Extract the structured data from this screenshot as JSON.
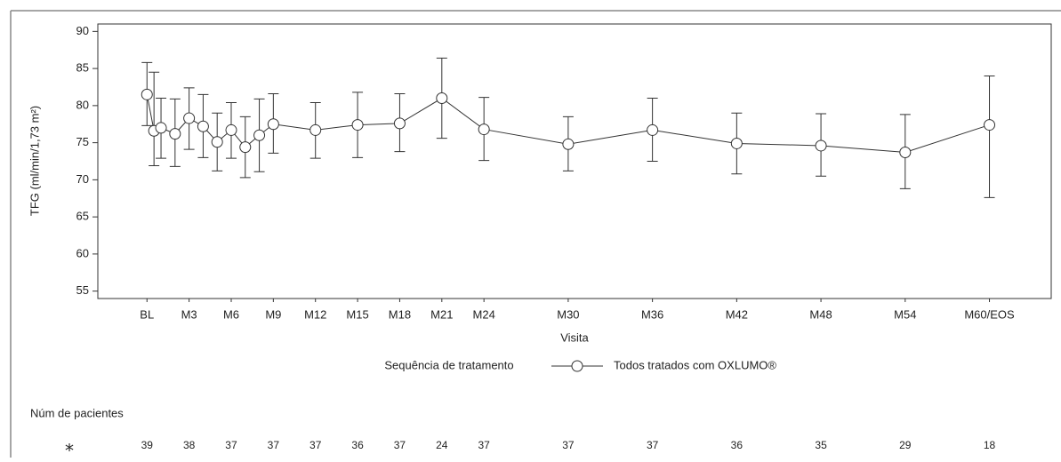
{
  "chart_data": {
    "type": "line",
    "x": [
      0,
      0.5,
      1,
      2,
      3,
      4,
      5,
      6,
      7,
      8,
      9,
      12,
      15,
      18,
      21,
      24,
      30,
      36,
      42,
      48,
      54,
      60
    ],
    "series": [
      {
        "name": "Todos tratados com OXLUMO®",
        "color": "#333333",
        "values": [
          81.5,
          76.6,
          77.0,
          76.2,
          78.3,
          77.2,
          75.1,
          76.7,
          74.4,
          76.0,
          77.5,
          76.7,
          77.4,
          77.6,
          81.0,
          76.8,
          74.8,
          76.7,
          74.9,
          74.6,
          73.7,
          77.4
        ],
        "lower": [
          77.3,
          71.9,
          72.9,
          71.8,
          74.1,
          73.0,
          71.2,
          72.9,
          70.3,
          71.1,
          73.6,
          72.9,
          73.0,
          73.8,
          75.6,
          72.6,
          71.2,
          72.5,
          70.8,
          70.5,
          68.8,
          67.6
        ],
        "upper": [
          85.8,
          84.5,
          81.0,
          80.9,
          82.4,
          81.5,
          79.0,
          80.4,
          78.5,
          80.9,
          81.6,
          80.4,
          81.8,
          81.6,
          86.4,
          81.1,
          78.5,
          81.0,
          79.0,
          78.9,
          78.8,
          84.0
        ]
      }
    ],
    "xlabel": "Visita",
    "ylabel": "TFG (ml/min/1,73 m²)",
    "legend_title": "Sequência de tratamento",
    "xlim": [
      -3.5,
      64.4
    ],
    "xticks": [
      {
        "value": 0,
        "label": "BL"
      },
      {
        "value": 3,
        "label": "M3"
      },
      {
        "value": 6,
        "label": "M6"
      },
      {
        "value": 9,
        "label": "M9"
      },
      {
        "value": 12,
        "label": "M12"
      },
      {
        "value": 15,
        "label": "M15"
      },
      {
        "value": 18,
        "label": "M18"
      },
      {
        "value": 21,
        "label": "M21"
      },
      {
        "value": 24,
        "label": "M24"
      },
      {
        "value": 30,
        "label": "M30"
      },
      {
        "value": 36,
        "label": "M36"
      },
      {
        "value": 42,
        "label": "M42"
      },
      {
        "value": 48,
        "label": "M48"
      },
      {
        "value": 54,
        "label": "M54"
      },
      {
        "value": 60,
        "label": "M60/EOS"
      }
    ],
    "ylim": [
      54,
      91
    ],
    "yticks": [
      55,
      60,
      65,
      70,
      75,
      80,
      85,
      90
    ],
    "patients": {
      "title": "Núm de pacientes",
      "symbol": "⁎",
      "values": [
        39,
        38,
        37,
        37,
        37,
        36,
        37,
        24,
        37,
        37,
        37,
        36,
        35,
        29,
        18
      ]
    }
  }
}
